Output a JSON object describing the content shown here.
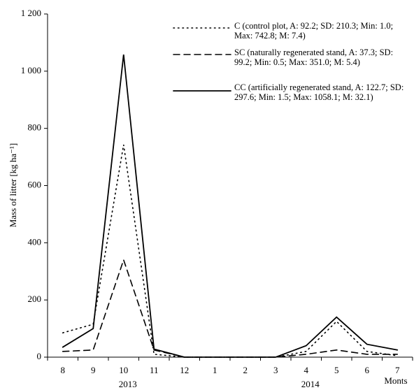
{
  "chart_data": {
    "type": "line",
    "ylabel": "Mass of litter [kg ha⁻¹]",
    "xlabel": "Monts",
    "categories": [
      "8",
      "9",
      "10",
      "11",
      "12",
      "1",
      "2",
      "3",
      "4",
      "5",
      "6",
      "7"
    ],
    "year_labels": [
      "2013",
      "2014"
    ],
    "ylim": [
      0,
      1200
    ],
    "yticks": [
      0,
      200,
      400,
      600,
      800,
      {
        "value": 1000,
        "label": "1 000"
      },
      {
        "value": 1200,
        "label": "1 200"
      }
    ],
    "series": [
      {
        "name": "C (control plot, A: 92.2; SD: 210.3; Min: 1.0; Max: 742.8; M: 7.4)",
        "color": "#000000",
        "style": "dotted",
        "values": [
          85,
          115,
          742.8,
          10,
          0,
          0,
          0,
          0,
          20,
          125,
          20,
          5
        ]
      },
      {
        "name": "SC (naturally regenerated stand, A: 37.3; SD: 99.2; Min: 0.5; Max: 351.0; M: 5.4)",
        "color": "#000000",
        "style": "dashed",
        "values": [
          20,
          25,
          340,
          25,
          0,
          0,
          0,
          0,
          10,
          25,
          10,
          10
        ]
      },
      {
        "name": "CC (artificially regenerated stand, A: 122.7; SD: 297.6; Min: 1.5; Max: 1058.1; M: 32.1)",
        "color": "#000000",
        "style": "solid",
        "values": [
          35,
          100,
          1058.1,
          28,
          0,
          0,
          0,
          0,
          40,
          140,
          45,
          25
        ]
      }
    ]
  }
}
